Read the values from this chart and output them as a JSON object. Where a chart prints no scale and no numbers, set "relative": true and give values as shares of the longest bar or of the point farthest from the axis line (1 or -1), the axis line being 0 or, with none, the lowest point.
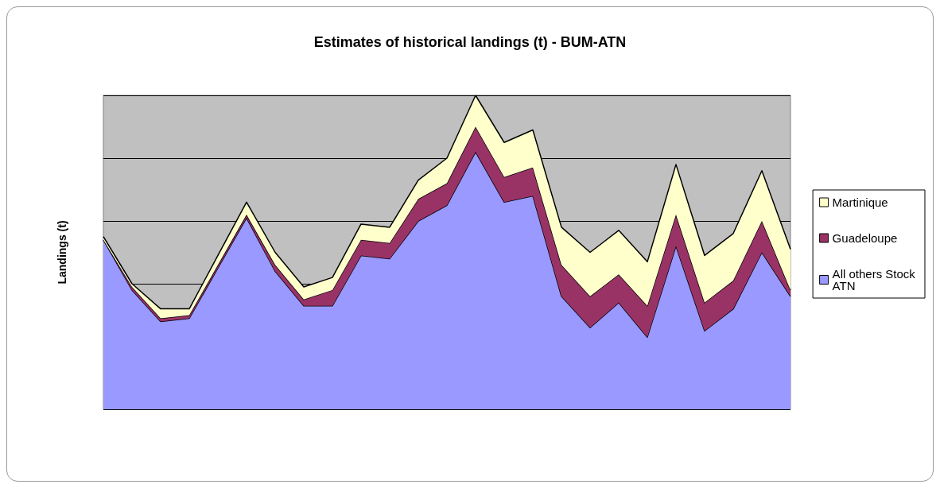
{
  "chart_data": {
    "type": "area",
    "title": "Estimates of historical landings (t) - BUM-ATN",
    "ylabel": "Landings (t)",
    "relative": true,
    "stacked": true,
    "grid": "y",
    "legend": "right",
    "categories": [
      null,
      null,
      null,
      null,
      null,
      null,
      null,
      null,
      null,
      null,
      null,
      null,
      null,
      null,
      null,
      null,
      null,
      null,
      null,
      null,
      null,
      null,
      null,
      null,
      null
    ],
    "series": [
      {
        "name": "All others Stock ATN",
        "color": "#9999ff",
        "values": [
          0.54,
          0.38,
          0.28,
          0.29,
          0.45,
          0.61,
          0.44,
          0.33,
          0.33,
          0.49,
          0.48,
          0.6,
          0.65,
          0.82,
          0.66,
          0.68,
          0.36,
          0.26,
          0.34,
          0.23,
          0.52,
          0.25,
          0.32,
          0.5,
          0.36
        ]
      },
      {
        "name": "Guadeloupe",
        "color": "#993366",
        "values": [
          0.0,
          0.01,
          0.01,
          0.01,
          0.01,
          0.01,
          0.02,
          0.02,
          0.05,
          0.05,
          0.05,
          0.07,
          0.07,
          0.08,
          0.08,
          0.09,
          0.1,
          0.1,
          0.09,
          0.1,
          0.1,
          0.09,
          0.09,
          0.1,
          0.02
        ]
      },
      {
        "name": "Martinique",
        "color": "#ffffcc",
        "values": [
          0.01,
          0.01,
          0.03,
          0.02,
          0.03,
          0.04,
          0.04,
          0.04,
          0.04,
          0.05,
          0.05,
          0.06,
          0.08,
          0.1,
          0.11,
          0.12,
          0.12,
          0.14,
          0.14,
          0.14,
          0.16,
          0.15,
          0.15,
          0.16,
          0.13
        ]
      }
    ]
  }
}
